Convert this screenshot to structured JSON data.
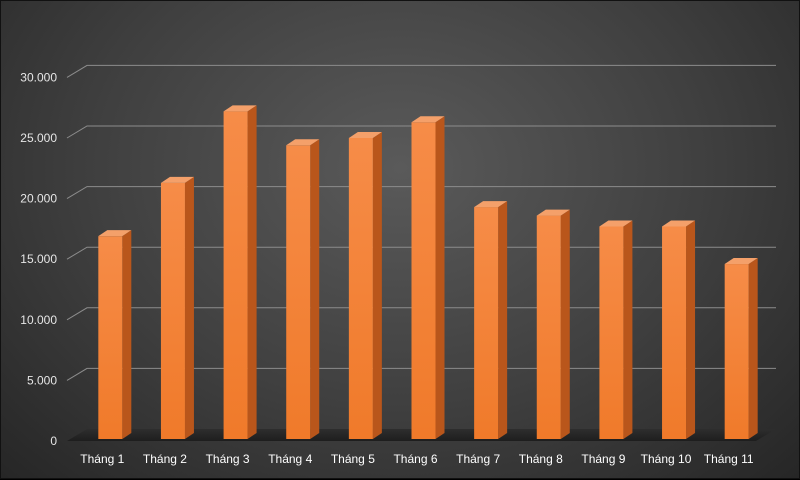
{
  "chart_data": {
    "type": "bar",
    "title": "",
    "xlabel": "",
    "ylabel": "",
    "categories": [
      "Tháng 1",
      "Tháng 2",
      "Tháng 3",
      "Tháng 4",
      "Tháng 5",
      "Tháng 6",
      "Tháng 7",
      "Tháng 8",
      "Tháng 9",
      "Tháng 10",
      "Tháng 11"
    ],
    "values": [
      16900,
      21300,
      27200,
      24400,
      25000,
      26300,
      19300,
      18600,
      17700,
      17700,
      14600
    ],
    "ylim": [
      0,
      30000
    ],
    "yticks": [
      0,
      5000,
      10000,
      15000,
      20000,
      25000,
      30000
    ],
    "ytick_labels": [
      "0",
      "5.000",
      "10.000",
      "15.000",
      "20.000",
      "25.000",
      "30.000"
    ],
    "grid": true,
    "legend": "none",
    "style": "3d-column",
    "colors": {
      "bar": "#f07a2a",
      "bar_top": "#f4a06a",
      "bar_side": "#b9561b",
      "grid": "#8c8c8c",
      "floor": "#262626"
    }
  }
}
